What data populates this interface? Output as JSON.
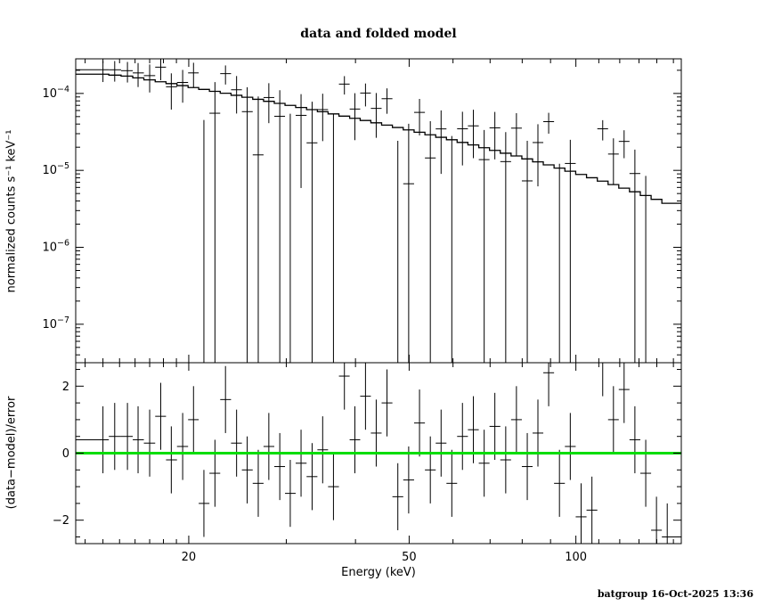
{
  "footer": "batgroup 16-Oct-2025 13:36",
  "chart_data": {
    "type": "scatter",
    "title": "data and folded model",
    "xlabel": "Energy (keV)",
    "ylabel_top": "normalized counts s⁻¹ keV⁻¹",
    "ylabel_bottom": "(data−model)/error",
    "x_scale": "log",
    "y_scale_top": "log",
    "xlim": [
      12.5,
      155
    ],
    "ylim_top_log10": [
      -7.5,
      -3.55
    ],
    "ylim_bottom": [
      -2.7,
      2.7
    ],
    "x_major_ticks": [
      20,
      50,
      100
    ],
    "y_major_ticks_top_exp": [
      -4,
      -5,
      -6,
      -7
    ],
    "y_major_ticks_bottom": [
      -2,
      0,
      2
    ],
    "grid": false,
    "legend": false,
    "zero_line_color": "#00dd00",
    "series": {
      "energy_kev": [
        14.0,
        14.7,
        15.5,
        16.2,
        17.0,
        17.8,
        18.6,
        19.5,
        20.4,
        21.3,
        22.3,
        23.3,
        24.4,
        25.5,
        26.7,
        27.9,
        29.2,
        30.5,
        31.9,
        33.4,
        34.9,
        36.5,
        38.2,
        39.9,
        41.7,
        43.6,
        45.6,
        47.7,
        49.9,
        52.2,
        54.6,
        57.1,
        59.7,
        62.4,
        65.3,
        68.3,
        71.4,
        74.7,
        78.1,
        81.7,
        85.4,
        89.3,
        93.4,
        97.7,
        102.2,
        106.9,
        111.8,
        116.9,
        122.2,
        127.8,
        133.7,
        139.8,
        146.2
      ],
      "model": [
        0.000178,
        0.000173,
        0.0001682,
        0.0001593,
        0.0001501,
        0.0001417,
        0.0001342,
        0.0001264,
        0.0001193,
        0.0001129,
        0.0001064,
        0.0001005,
        9.46e-05,
        8.92e-05,
        8.39e-05,
        7.9e-05,
        7.43e-05,
        6.99e-05,
        6.57e-05,
        6.16e-05,
        5.78e-05,
        5.42e-05,
        5.07e-05,
        4.75e-05,
        4.45e-05,
        4.15e-05,
        3.88e-05,
        3.61e-05,
        3.36e-05,
        3.13e-05,
        2.9e-05,
        2.69e-05,
        2.5e-05,
        2.31e-05,
        2.14e-05,
        1.97e-05,
        1.82e-05,
        1.67e-05,
        1.54e-05,
        1.41e-05,
        1.29e-05,
        1.18e-05,
        1.07e-05,
        9.76e-06,
        8.86e-06,
        8.02e-06,
        7.25e-06,
        6.53e-06,
        5.88e-06,
        5.27e-06,
        4.71e-06,
        4.2e-06,
        3.73e-06
      ],
      "data": [
        0.000203,
        0.000203,
        0.0001976,
        0.0001848,
        0.0001704,
        0.0002196,
        0.0001221,
        0.000139,
        0.0001849,
        -9.03e-05,
        5.53e-05,
        0.0001809,
        0.0001116,
        5.8e-05,
        1.59e-05,
        8.85e-05,
        5.05e-05,
        -2.24e-05,
        5.19e-05,
        2.28e-05,
        6.16e-05,
        0,
        0.0001323,
        6.27e-05,
        0.0001012,
        6.39e-05,
        8.54e-05,
        -1.55e-05,
        6.7e-06,
        5.67e-05,
        1.45e-05,
        3.46e-05,
        -2e-06,
        3.47e-05,
        3.79e-05,
        1.38e-05,
        3.57e-05,
        1.3e-05,
        3.54e-05,
        7.3e-06,
        2.3e-05,
        4.3e-05,
        -2.8e-06,
        1.23e-05,
        -1.81e-05,
        -1.24e-05,
        3.47e-05,
        1.63e-05,
        2.38e-05,
        9.1e-06,
        -9.4e-07,
        -1.71e-05,
        -1.96e-05
      ],
      "error": [
        6.23e-05,
        6.06e-05,
        5.89e-05,
        6.37e-05,
        6.75e-05,
        7.09e-05,
        6.04e-05,
        6.32e-05,
        6.56e-05,
        0.0001355,
        8.51e-05,
        5.03e-05,
        5.68e-05,
        6.24e-05,
        7.55e-05,
        4.74e-05,
        5.94e-05,
        7.69e-05,
        4.6e-05,
        5.54e-05,
        3.76e-05,
        5.42e-05,
        3.55e-05,
        3.8e-05,
        3.34e-05,
        3.74e-05,
        3.1e-05,
        3.97e-05,
        3.36e-05,
        2.82e-05,
        2.9e-05,
        2.56e-05,
        3e-05,
        2.31e-05,
        2.35e-05,
        1.97e-05,
        2.18e-05,
        1.84e-05,
        2e-05,
        1.69e-05,
        1.68e-05,
        1.3e-05,
        1.5e-05,
        1.27e-05,
        1.42e-05,
        1.2e-05,
        1.02e-05,
        9.8e-06,
        9.41e-06,
        9.49e-06,
        9.42e-06,
        9.24e-06,
        9.33e-06
      ],
      "residual": [
        0.4,
        0.5,
        0.5,
        0.4,
        0.3,
        1.1,
        -0.2,
        0.2,
        1.0,
        -1.5,
        -0.6,
        1.6,
        0.3,
        -0.5,
        -0.9,
        0.2,
        -0.4,
        -1.2,
        -0.3,
        -0.7,
        0.1,
        -1.0,
        2.3,
        0.4,
        1.7,
        0.6,
        1.5,
        -1.3,
        -0.8,
        0.9,
        -0.5,
        0.3,
        -0.9,
        0.5,
        0.7,
        -0.3,
        0.8,
        -0.2,
        1.0,
        -0.4,
        0.6,
        2.4,
        -0.9,
        0.2,
        -1.9,
        -1.7,
        2.7,
        1.0,
        1.9,
        0.4,
        -0.6,
        -2.3,
        -2.5
      ],
      "residual_error": 1
    }
  }
}
